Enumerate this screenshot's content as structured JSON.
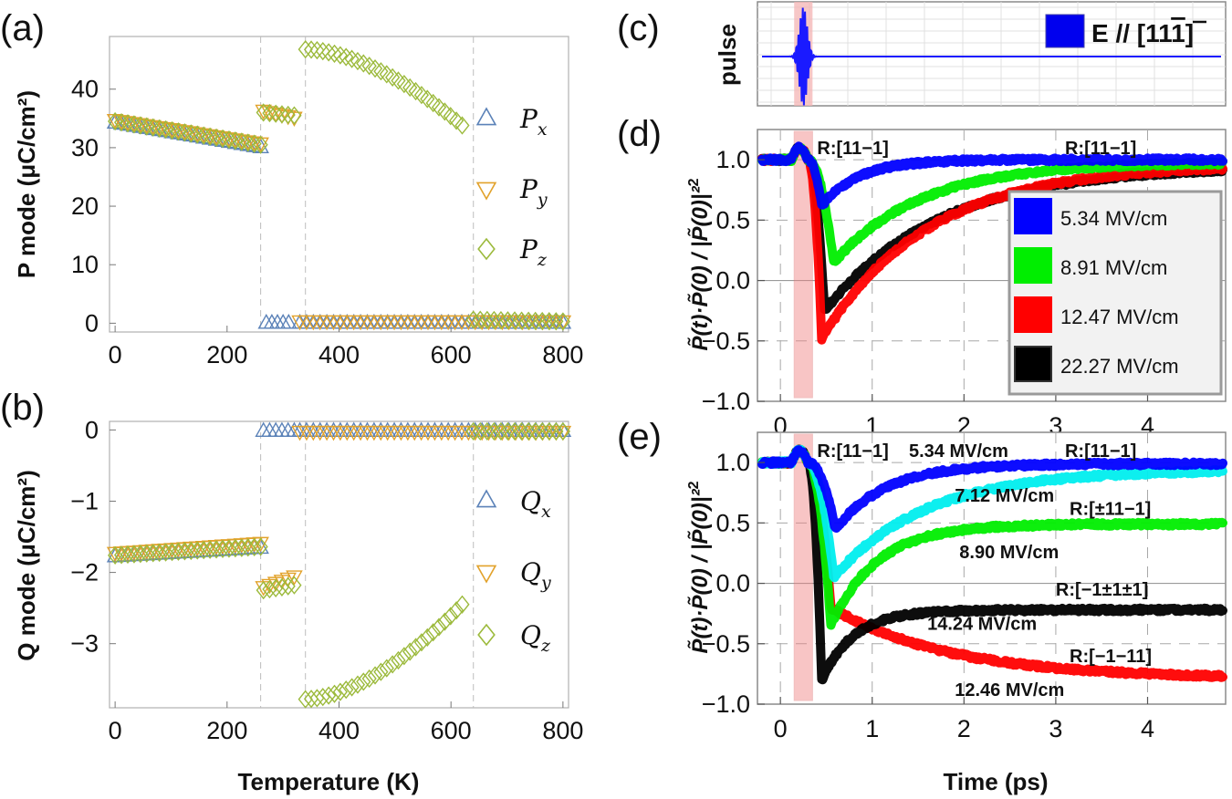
{
  "chart_data": [
    {
      "panel": "(a)",
      "type": "scatter",
      "xlabel": "",
      "ylabel": "P mode (μC/cm²)",
      "xlim": [
        -10,
        810
      ],
      "ylim": [
        -1.5,
        49
      ],
      "xticks": [
        "0",
        "200",
        "400",
        "600",
        "800"
      ],
      "yticks": [
        "0",
        "10",
        "20",
        "30",
        "40"
      ],
      "vlines": [
        260,
        340,
        640
      ],
      "series": [
        {
          "name": "P",
          "sub": "x",
          "marker": "triangle-up",
          "color": "#5b82b8",
          "segments": [
            {
              "x": [
                0,
                260
              ],
              "y": [
                34.2,
                30.0
              ],
              "n": 24
            },
            {
              "x": [
                270,
                310
              ],
              "y": [
                0,
                0
              ],
              "n": 5
            },
            {
              "x": [
                330,
                800
              ],
              "y": [
                0,
                0
              ],
              "n": 40
            }
          ]
        },
        {
          "name": "P",
          "sub": "y",
          "marker": "triangle-down",
          "color": "#e2a22b",
          "segments": [
            {
              "x": [
                0,
                260
              ],
              "y": [
                34.8,
                30.8
              ],
              "n": 24
            },
            {
              "x": [
                265,
                320
              ],
              "y": [
                36.4,
                35.2
              ],
              "n": 6
            },
            {
              "x": [
                330,
                800
              ],
              "y": [
                0.4,
                0.4
              ],
              "n": 40
            }
          ]
        },
        {
          "name": "P",
          "sub": "z",
          "marker": "diamond",
          "color": "#9cba3c",
          "segments": [
            {
              "x": [
                0,
                260
              ],
              "y": [
                34.5,
                30.5
              ],
              "n": 24
            },
            {
              "x": [
                265,
                320
              ],
              "y": [
                36.0,
                35.5
              ],
              "n": 6
            },
            {
              "x": [
                340,
                620
              ],
              "y": [
                46.8,
                33.8
              ],
              "n": 28,
              "curve": 1.7
            },
            {
              "x": [
                640,
                800
              ],
              "y": [
                0.6,
                0.3
              ],
              "n": 14
            }
          ]
        }
      ]
    },
    {
      "panel": "(b)",
      "type": "scatter",
      "xlabel": "Temperature (K)",
      "ylabel": "Q mode (μC/cm²)",
      "xlim": [
        -10,
        810
      ],
      "ylim": [
        -3.9,
        0.12
      ],
      "xticks": [
        "0",
        "200",
        "400",
        "600",
        "800"
      ],
      "yticks": [
        "0",
        "−1",
        "−2",
        "−3"
      ],
      "vlines": [
        260,
        340,
        640
      ],
      "series": [
        {
          "name": "Q",
          "sub": "x",
          "marker": "triangle-up",
          "color": "#5b82b8",
          "segments": [
            {
              "x": [
                0,
                260
              ],
              "y": [
                -1.78,
                -1.66
              ],
              "n": 24
            },
            {
              "x": [
                265,
                320
              ],
              "y": [
                -0.02,
                -0.02
              ],
              "n": 6
            },
            {
              "x": [
                330,
                800
              ],
              "y": [
                -0.02,
                -0.02
              ],
              "n": 40
            }
          ]
        },
        {
          "name": "Q",
          "sub": "y",
          "marker": "triangle-down",
          "color": "#e2a22b",
          "segments": [
            {
              "x": [
                0,
                260
              ],
              "y": [
                -1.72,
                -1.58
              ],
              "n": 24
            },
            {
              "x": [
                265,
                320
              ],
              "y": [
                -2.2,
                -2.05
              ],
              "n": 6
            },
            {
              "x": [
                330,
                800
              ],
              "y": [
                -0.02,
                -0.02
              ],
              "n": 40
            }
          ]
        },
        {
          "name": "Q",
          "sub": "z",
          "marker": "diamond",
          "color": "#9cba3c",
          "segments": [
            {
              "x": [
                0,
                260
              ],
              "y": [
                -1.76,
                -1.64
              ],
              "n": 24
            },
            {
              "x": [
                265,
                320
              ],
              "y": [
                -2.25,
                -2.18
              ],
              "n": 6
            },
            {
              "x": [
                340,
                620
              ],
              "y": [
                -3.78,
                -2.45
              ],
              "n": 28,
              "curve": 1.7
            },
            {
              "x": [
                640,
                800
              ],
              "y": [
                -0.02,
                -0.02
              ],
              "n": 14
            }
          ]
        }
      ],
      "legend_symbols": [
        "Q",
        "Q",
        "Q"
      ]
    },
    {
      "panel": "(c)",
      "type": "line",
      "ylabel": "pulse",
      "legend": "E // [11",
      "legend_overbar": "1",
      "legend_close": "]",
      "xlim": [
        -0.25,
        4.85
      ],
      "pulse": {
        "center": 0.25,
        "width": 0.06,
        "amplitude": 1.0,
        "frequency_per_ps": 42
      },
      "shaded_window": [
        0.15,
        0.35
      ],
      "color": "#1a1aff"
    },
    {
      "panel": "(d)",
      "type": "line",
      "xlabel": "",
      "ylabel": "P̃(t)·P̃(0) / |P̃(0)|²",
      "ylabel_sup": "2",
      "xlim": [
        -0.25,
        4.85
      ],
      "ylim": [
        -1.0,
        1.25
      ],
      "xticks": [
        "0",
        "1",
        "2",
        "3",
        "4"
      ],
      "yticks": [
        "1.0",
        "0.5",
        "0.0",
        "−0.5",
        "−1.0"
      ],
      "shaded_window": [
        0.15,
        0.35
      ],
      "annotations": [
        {
          "text": "R:[11−1]",
          "x": 0.4,
          "y": 1.1
        },
        {
          "text": "R:[11−1]",
          "x": 3.1,
          "y": 1.1
        }
      ],
      "series": [
        {
          "name": "22.27 MV/cm",
          "color": "#000000",
          "dip_t": 0.48,
          "dip_y": -0.25,
          "final": 0.95,
          "tau": 1.25
        },
        {
          "name": "12.47 MV/cm",
          "color": "#ff0000",
          "dip_t": 0.45,
          "dip_y": -0.48,
          "final": 0.96,
          "tau": 1.15
        },
        {
          "name": "8.91 MV/cm",
          "color": "#00ee00",
          "dip_t": 0.58,
          "dip_y": 0.15,
          "final": 0.98,
          "tau": 0.95
        },
        {
          "name": "5.34 MV/cm",
          "color": "#0000ff",
          "dip_t": 0.45,
          "dip_y": 0.62,
          "final": 1.0,
          "tau": 0.4
        }
      ],
      "legend_order": [
        "5.34 MV/cm",
        "8.91 MV/cm",
        "12.47 MV/cm",
        "22.27 MV/cm"
      ]
    },
    {
      "panel": "(e)",
      "type": "line",
      "xlabel": "Time (ps)",
      "ylabel": "P̃(t)·P̃(0) / |P̃(0)|²",
      "ylabel_sup": "2",
      "xlim": [
        -0.25,
        4.85
      ],
      "ylim": [
        -1.0,
        1.25
      ],
      "xticks": [
        "0",
        "1",
        "2",
        "3",
        "4"
      ],
      "yticks": [
        "1.0",
        "0.5",
        "0.0",
        "−0.5",
        "−1.0"
      ],
      "shaded_window": [
        0.15,
        0.35
      ],
      "annotations": [
        {
          "text": "R:[11−1]",
          "x": 0.4,
          "y": 1.1
        },
        {
          "text": "5.34 MV/cm",
          "x": 1.4,
          "y": 1.1
        },
        {
          "text": "R:[11−1]",
          "x": 3.1,
          "y": 1.1
        },
        {
          "text": "7.12 MV/cm",
          "x": 1.9,
          "y": 0.73
        },
        {
          "text": "R:[±11−1]",
          "x": 3.15,
          "y": 0.62
        },
        {
          "text": "8.90 MV/cm",
          "x": 1.95,
          "y": 0.26
        },
        {
          "text": "R:[−1±1±1]",
          "x": 3.0,
          "y": -0.05
        },
        {
          "text": "14.24 MV/cm",
          "x": 1.6,
          "y": -0.33
        },
        {
          "text": "R:[−1−11]",
          "x": 3.15,
          "y": -0.6
        },
        {
          "text": "12.46 MV/cm",
          "x": 1.9,
          "y": -0.88
        }
      ],
      "series": [
        {
          "name": "12.46 MV/cm",
          "color": "#ff0000",
          "dip_t": 0.55,
          "dip_y": -0.2,
          "final": -0.79,
          "tau": 1.3
        },
        {
          "name": "14.24 MV/cm",
          "color": "#000000",
          "dip_t": 0.45,
          "dip_y": -0.8,
          "final": -0.22,
          "tau": 0.35
        },
        {
          "name": "8.90 MV/cm",
          "color": "#00ee00",
          "dip_t": 0.55,
          "dip_y": -0.35,
          "final": 0.49,
          "tau": 0.5
        },
        {
          "name": "7.12 MV/cm",
          "color": "#00eeee",
          "dip_t": 0.58,
          "dip_y": 0.05,
          "final": 0.94,
          "tau": 1.0
        },
        {
          "name": "5.34 MV/cm",
          "color": "#0000ff",
          "dip_t": 0.6,
          "dip_y": 0.45,
          "final": 0.99,
          "tau": 0.55
        }
      ]
    }
  ]
}
